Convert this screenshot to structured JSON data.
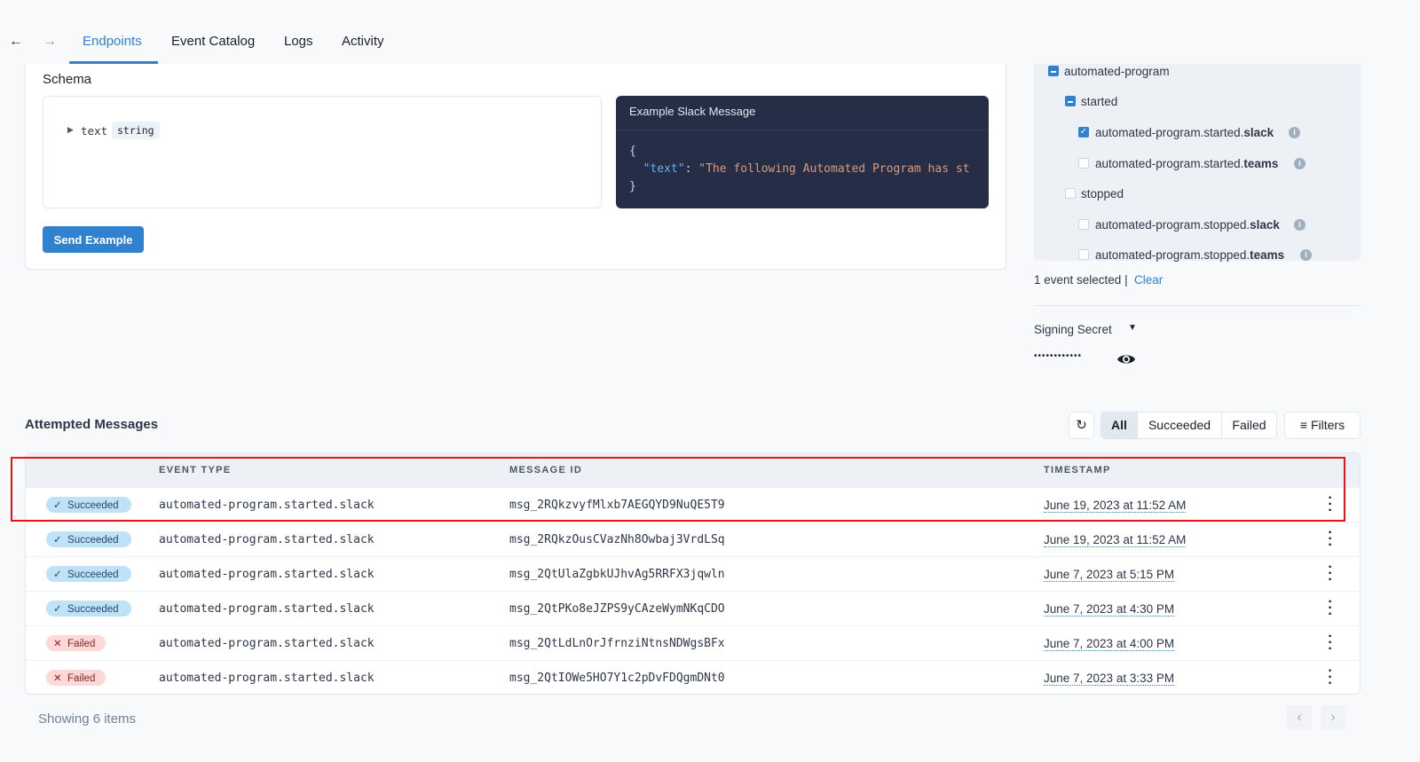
{
  "nav": {
    "back": "←",
    "forward": "→",
    "tabs": [
      {
        "label": "Endpoints",
        "active": true
      },
      {
        "label": "Event Catalog"
      },
      {
        "label": "Logs"
      },
      {
        "label": "Activity"
      }
    ]
  },
  "schema": {
    "title": "Schema",
    "field_name": "text",
    "field_type": "string",
    "send_label": "Send Example"
  },
  "example": {
    "title": "Example Slack Message",
    "open": "{",
    "key": "\"text\"",
    "colon": ": ",
    "value": "\"The following Automated Program has st",
    "close": "}"
  },
  "events": {
    "group": "automated-program",
    "sub1": "started",
    "sub2": "stopped",
    "items": [
      {
        "prefix": "automated-program.started.",
        "suffix": "slack",
        "checked": true
      },
      {
        "prefix": "automated-program.started.",
        "suffix": "teams",
        "checked": false
      },
      {
        "prefix": "automated-program.stopped.",
        "suffix": "slack",
        "checked": false
      },
      {
        "prefix": "automated-program.stopped.",
        "suffix": "teams",
        "checked": false
      }
    ],
    "selected_text": "1 event selected |",
    "clear": "Clear"
  },
  "signing": {
    "label": "Signing Secret",
    "masked": "••••••••••••"
  },
  "messages": {
    "title": "Attempted Messages",
    "filters": {
      "all": "All",
      "succeeded": "Succeeded",
      "failed": "Failed",
      "filters": "Filters"
    },
    "columns": {
      "event_type": "EVENT TYPE",
      "message_id": "MESSAGE ID",
      "timestamp": "TIMESTAMP"
    },
    "rows": [
      {
        "status": "Succeeded",
        "event": "automated-program.started.slack",
        "id": "msg_2RQkzvyfMlxb7AEGQYD9NuQE5T9",
        "ts": "June 19, 2023 at 11:52 AM"
      },
      {
        "status": "Succeeded",
        "event": "automated-program.started.slack",
        "id": "msg_2RQkzOusCVazNh8Owbaj3VrdLSq",
        "ts": "June 19, 2023 at 11:52 AM"
      },
      {
        "status": "Succeeded",
        "event": "automated-program.started.slack",
        "id": "msg_2QtUlaZgbkUJhvAg5RRFX3jqwln",
        "ts": "June 7, 2023 at 5:15 PM"
      },
      {
        "status": "Succeeded",
        "event": "automated-program.started.slack",
        "id": "msg_2QtPKo8eJZPS9yCAzeWymNKqCDO",
        "ts": "June 7, 2023 at 4:30 PM"
      },
      {
        "status": "Failed",
        "event": "automated-program.started.slack",
        "id": "msg_2QtLdLnOrJfrnziNtnsNDWgsBFx",
        "ts": "June 7, 2023 at 4:00 PM"
      },
      {
        "status": "Failed",
        "event": "automated-program.started.slack",
        "id": "msg_2QtIOWe5HO7Y1c2pDvFDQgmDNt0",
        "ts": "June 7, 2023 at 3:33 PM"
      }
    ],
    "showing": "Showing 6 items"
  },
  "colors": {
    "accent": "#3182ce",
    "highlight": "#e53e3e",
    "code_bg": "#262d47"
  }
}
